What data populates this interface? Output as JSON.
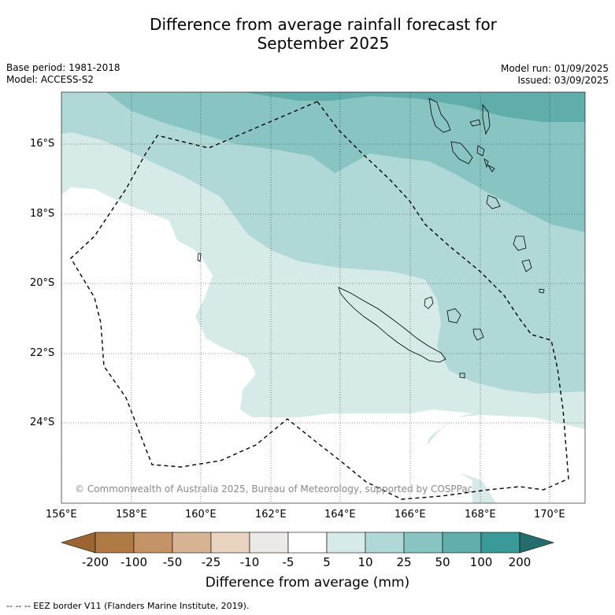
{
  "title_line1": "Difference from average rainfall forecast for",
  "title_line2": "September 2025",
  "base_period": "Base period: 1981-2018",
  "model": "Model: ACCESS-S2",
  "model_run": "Model run: 01/09/2025",
  "issued": "Issued: 03/09/2025",
  "copyright": "© Commonwealth of Australia 2025, Bureau of Meteorology, supported by COSPPac",
  "lon_ticks": [
    "156°E",
    "158°E",
    "160°E",
    "162°E",
    "164°E",
    "166°E",
    "168°E",
    "170°E"
  ],
  "lat_ticks": [
    "16°S",
    "18°S",
    "20°S",
    "22°S",
    "24°S"
  ],
  "colorbar": {
    "label": "Difference from average (mm)",
    "ticks": [
      "-200",
      "-100",
      "-50",
      "-25",
      "-10",
      "-5",
      "5",
      "10",
      "25",
      "50",
      "100",
      "200"
    ],
    "colors": [
      "#9c6530",
      "#b07a44",
      "#c49468",
      "#d6b393",
      "#e8d3bf",
      "#ebeae7",
      "#ffffff",
      "#d6eae8",
      "#b0d8d7",
      "#88c4c2",
      "#5faeac",
      "#3a9a97",
      "#236e6d"
    ]
  },
  "footnote": "--  --  -- EEZ border V11 (Flanders Marine Institute, 2019).",
  "legend_category_colors": {
    "band_5_10": "#d6eae8",
    "band_10_25": "#b0d8d7",
    "band_25_50": "#88c4c2",
    "band_50_100": "#5faeac"
  }
}
